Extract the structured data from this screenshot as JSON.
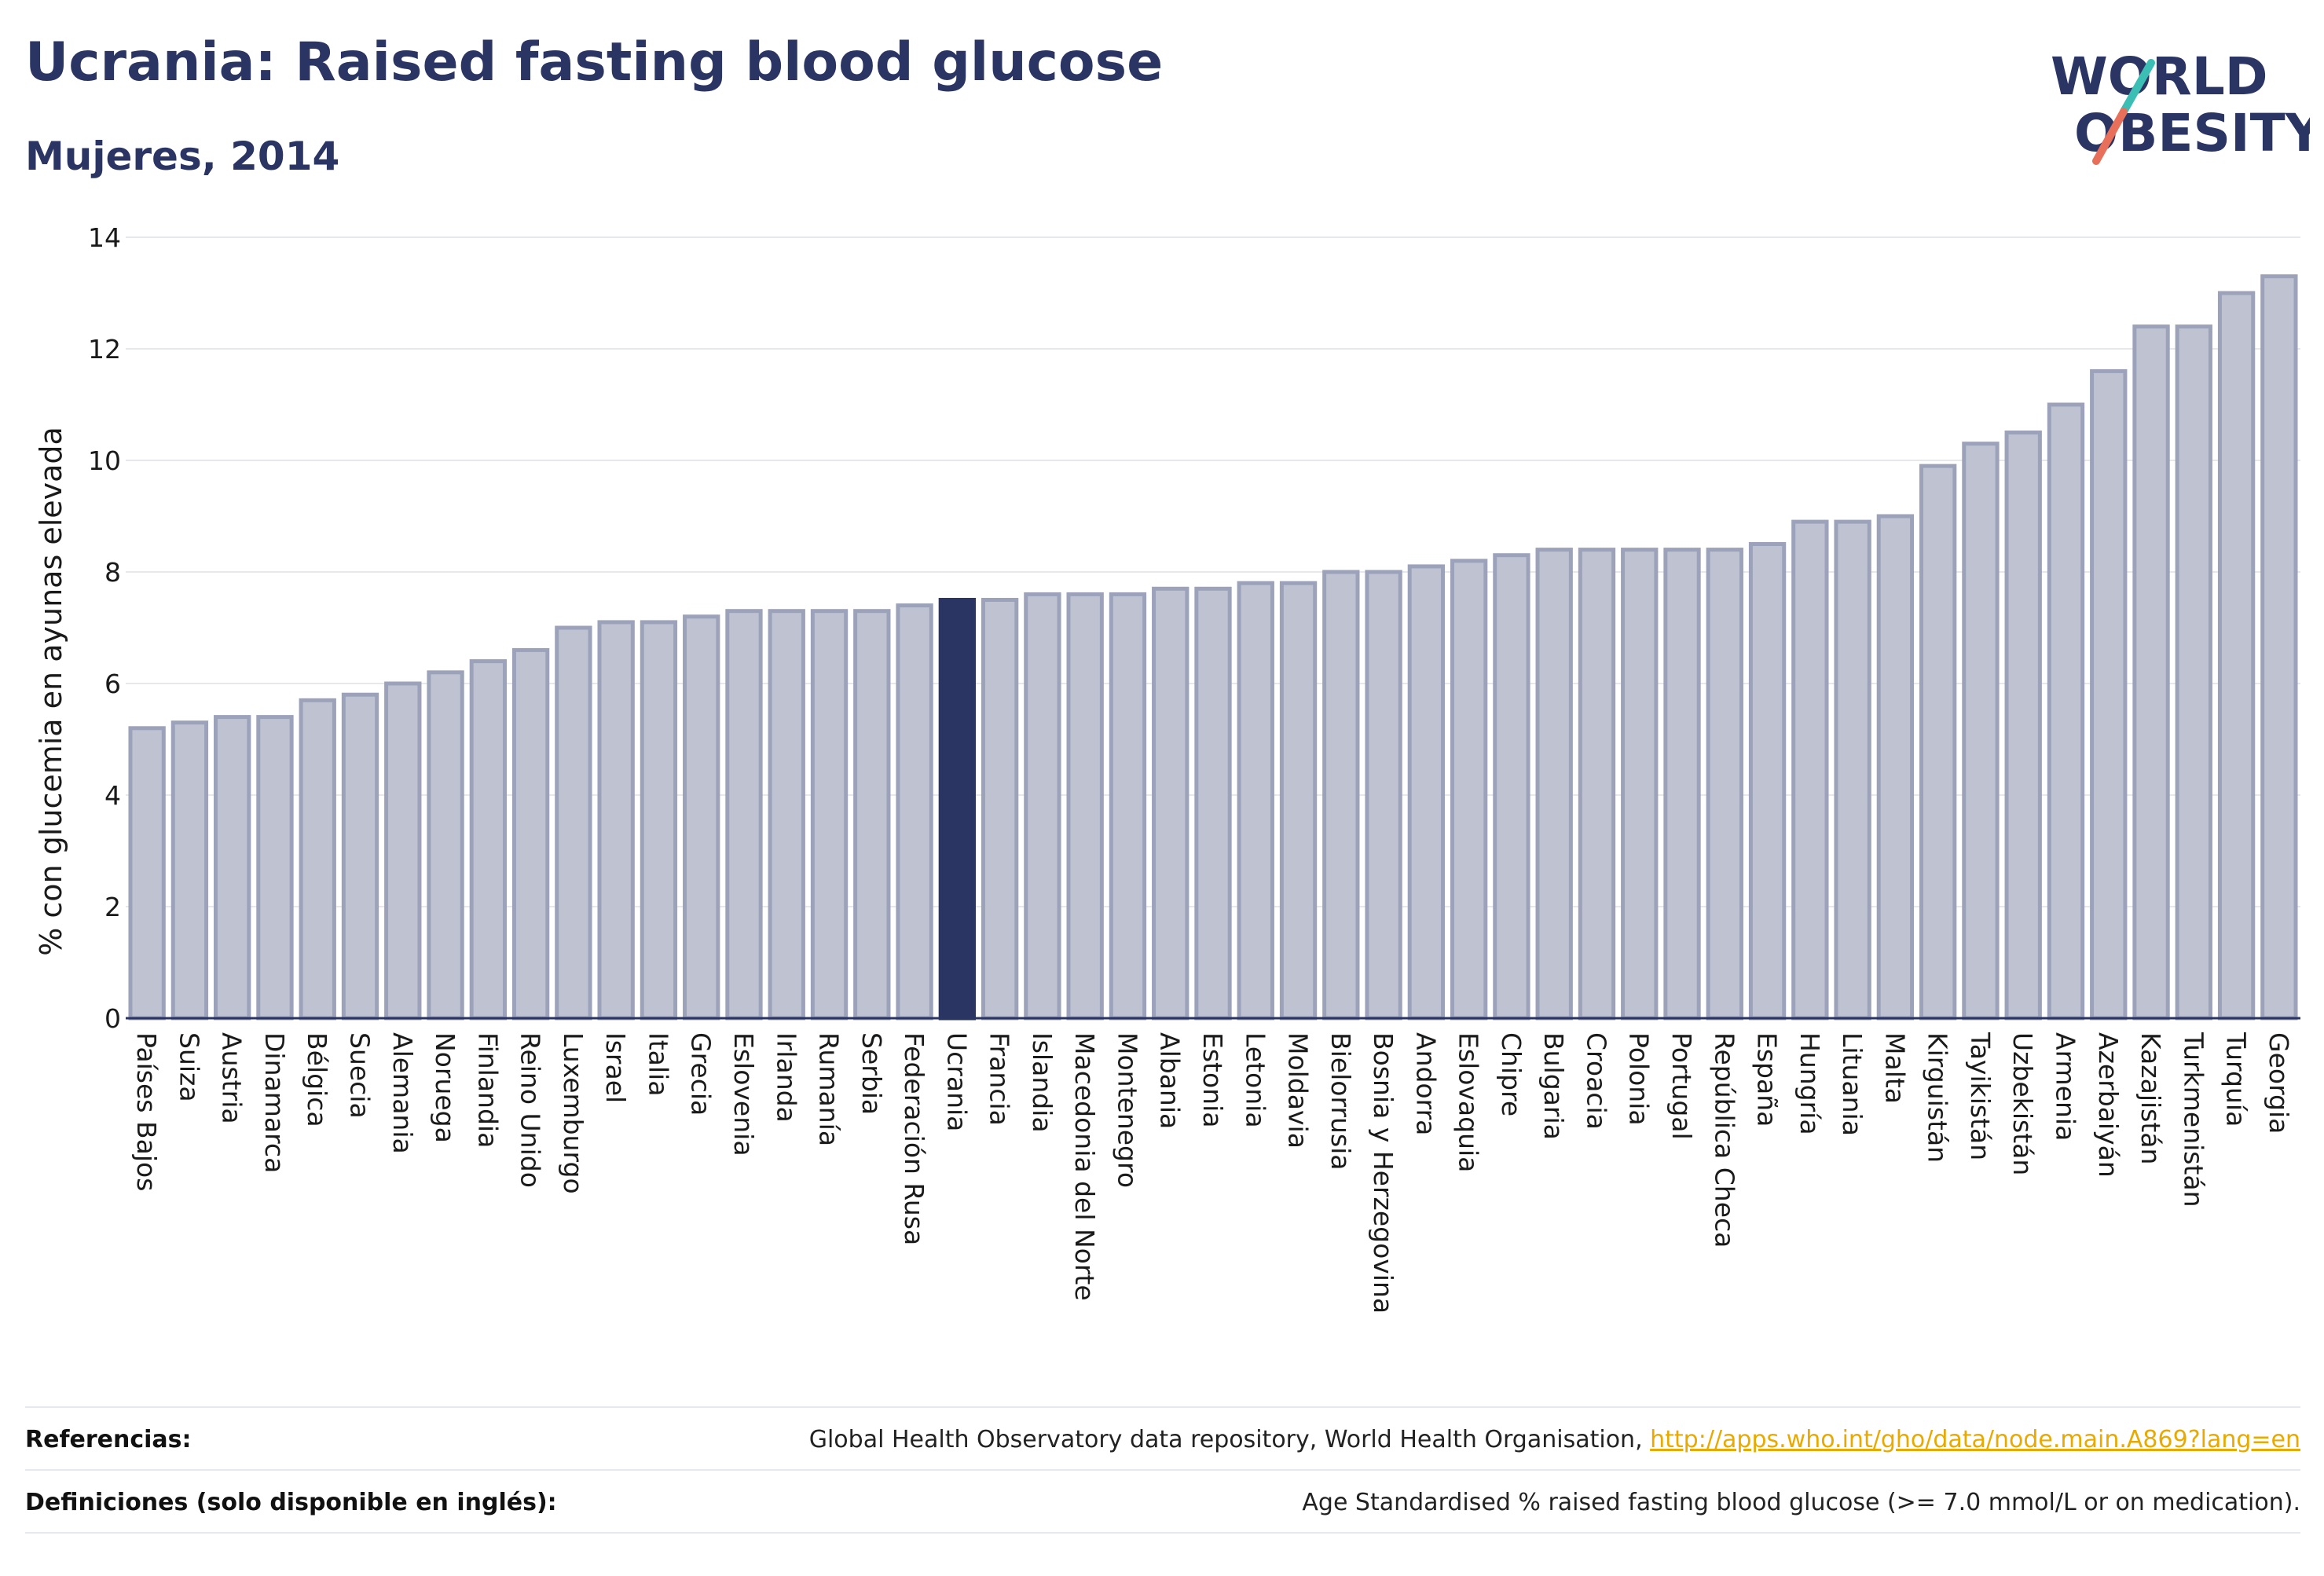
{
  "header": {
    "title": "Ucrania: Raised fasting blood glucose",
    "subtitle": "Mujeres, 2014"
  },
  "logo": {
    "line1": "WORLD",
    "line2": "OBESITY"
  },
  "colors": {
    "title": "#2a3563",
    "bar_default": "#bfc3d1",
    "bar_default_stroke": "#9ca2ba",
    "bar_highlight": "#2a3563",
    "grid": "#e6e8ee",
    "axis": "#2a3563",
    "logo_teal": "#3bbfb5",
    "logo_coral": "#e8705a",
    "link": "#e8a900"
  },
  "chart_data": {
    "type": "bar",
    "title": "Ucrania: Raised fasting blood glucose",
    "subtitle": "Mujeres, 2014",
    "xlabel": "",
    "ylabel": "% con glucemia en ayunas elevada",
    "ylim": [
      0,
      14
    ],
    "yticks": [
      0,
      2,
      4,
      6,
      8,
      10,
      12,
      14
    ],
    "grid": true,
    "highlight": "Ucrania",
    "categories": [
      "Países Bajos",
      "Suiza",
      "Austria",
      "Dinamarca",
      "Bélgica",
      "Suecia",
      "Alemania",
      "Noruega",
      "Finlandia",
      "Reino Unido",
      "Luxemburgo",
      "Israel",
      "Italia",
      "Grecia",
      "Eslovenia",
      "Irlanda",
      "Rumanía",
      "Serbia",
      "Federación Rusa",
      "Ucrania",
      "Francia",
      "Islandia",
      "Macedonia del Norte",
      "Montenegro",
      "Albania",
      "Estonia",
      "Letonia",
      "Moldavia",
      "Bielorrusia",
      "Bosnia y Herzegovina",
      "Andorra",
      "Eslovaquia",
      "Chipre",
      "Bulgaria",
      "Croacia",
      "Polonia",
      "Portugal",
      "República Checa",
      "España",
      "Hungría",
      "Lituania",
      "Malta",
      "Kirguistán",
      "Tayikistán",
      "Uzbekistán",
      "Armenia",
      "Azerbaiyán",
      "Kazajistán",
      "Turkmenistán",
      "Turquía",
      "Georgia"
    ],
    "values": [
      5.2,
      5.3,
      5.4,
      5.4,
      5.7,
      5.8,
      6.0,
      6.2,
      6.4,
      6.6,
      7.0,
      7.1,
      7.1,
      7.2,
      7.3,
      7.3,
      7.3,
      7.3,
      7.4,
      7.5,
      7.5,
      7.6,
      7.6,
      7.6,
      7.7,
      7.7,
      7.8,
      7.8,
      8.0,
      8.0,
      8.1,
      8.2,
      8.3,
      8.4,
      8.4,
      8.4,
      8.4,
      8.4,
      8.5,
      8.9,
      8.9,
      9.0,
      9.9,
      10.3,
      10.5,
      11.0,
      11.6,
      12.4,
      12.4,
      13.0,
      13.3
    ]
  },
  "footer": {
    "references_label": "Referencias:",
    "references_text": "Global Health Observatory data repository, World Health Organisation, ",
    "references_link": "http://apps.who.int/gho/data/node.main.A869?lang=en",
    "definitions_label": "Definiciones (solo disponible en inglés):",
    "definitions_text": "Age Standardised % raised fasting blood glucose (>= 7.0 mmol/L or on medication)."
  }
}
